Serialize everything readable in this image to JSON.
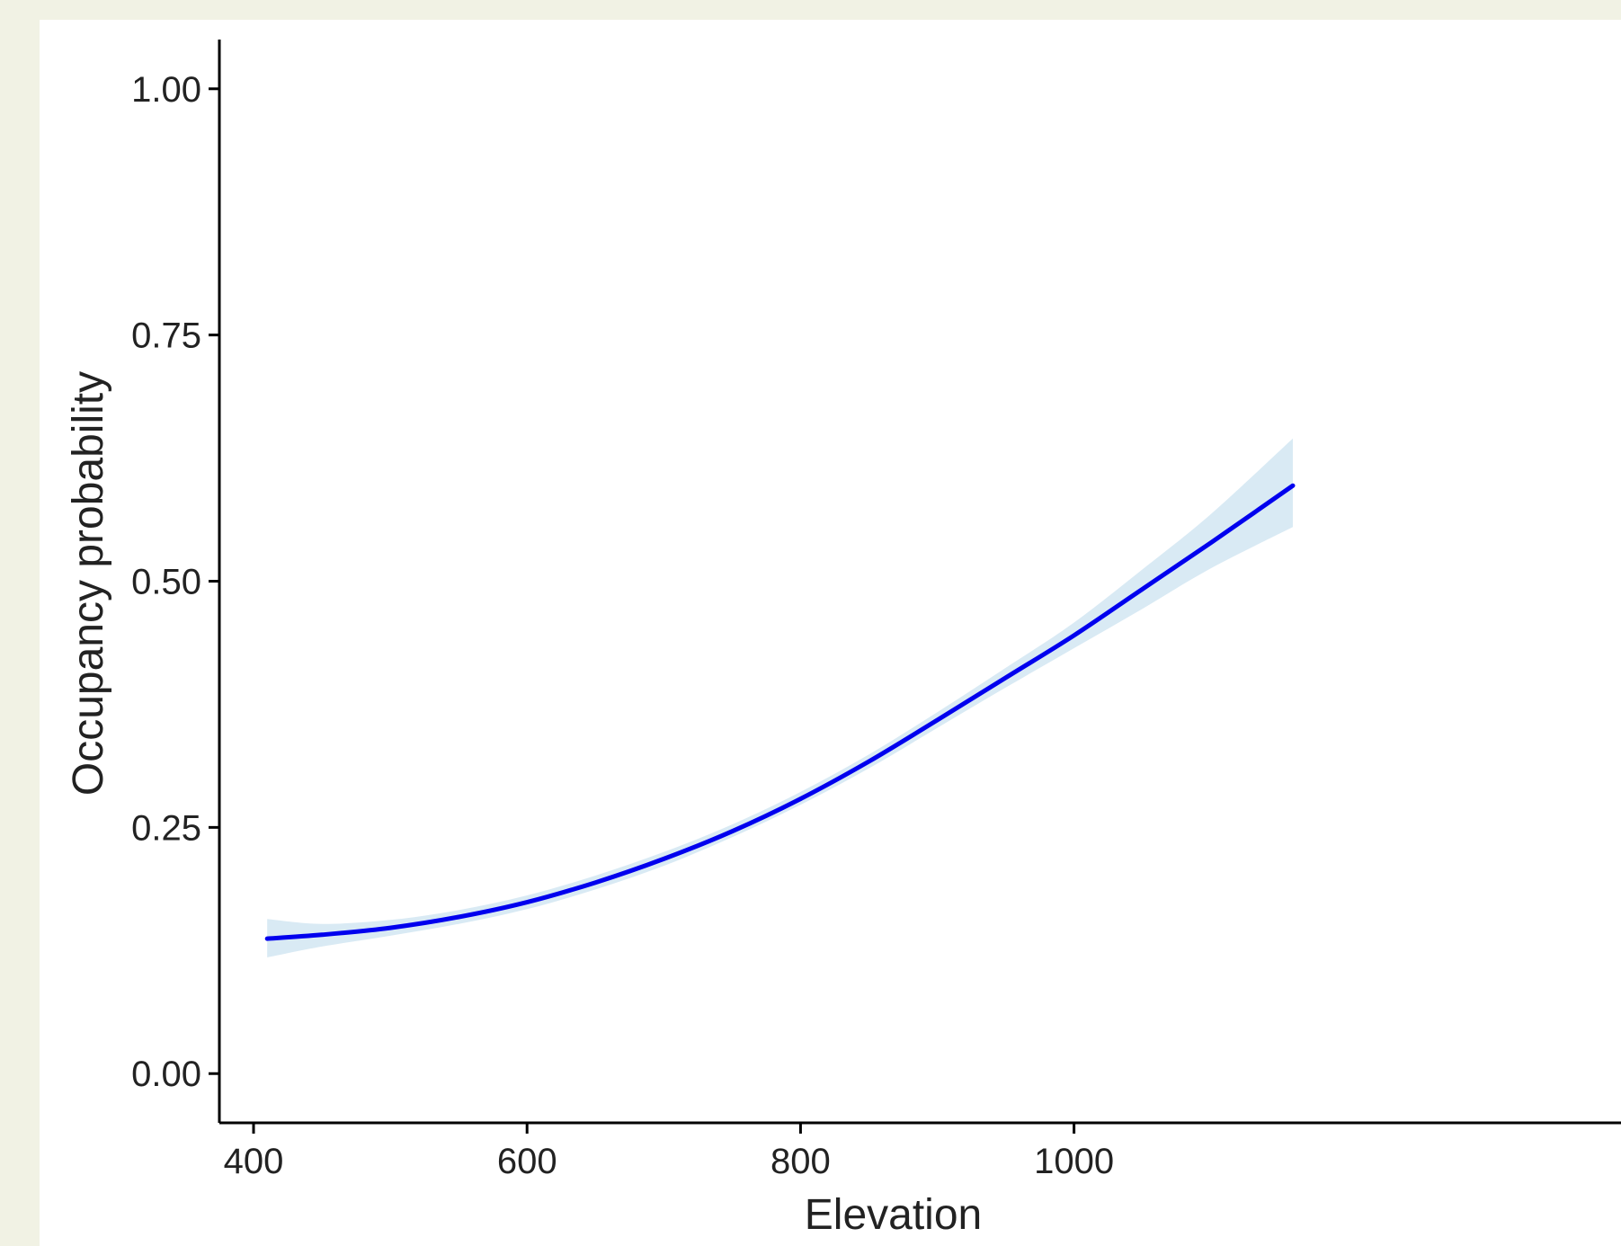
{
  "chart_data": {
    "type": "line",
    "title": "",
    "xlabel": "Elevation",
    "ylabel": "Occupancy probability",
    "xlim": [
      375,
      1400
    ],
    "ylim": [
      -0.05,
      1.05
    ],
    "x_ticks": [
      400,
      600,
      800,
      1000
    ],
    "y_ticks": [
      0.0,
      0.25,
      0.5,
      0.75,
      1.0
    ],
    "y_tick_labels": [
      "0.00",
      "0.25",
      "0.50",
      "0.75",
      "1.00"
    ],
    "grid": false,
    "legend": "none",
    "line_color": "#0000ee",
    "ribbon_color": "#d9eaf4",
    "series": [
      {
        "x": [
          410,
          450,
          500,
          550,
          600,
          650,
          700,
          750,
          800,
          850,
          900,
          950,
          1000,
          1050,
          1100,
          1160
        ],
        "y": [
          0.137,
          0.141,
          0.148,
          0.159,
          0.174,
          0.194,
          0.218,
          0.246,
          0.279,
          0.317,
          0.359,
          0.402,
          0.445,
          0.492,
          0.539,
          0.597
        ],
        "lower": [
          0.118,
          0.129,
          0.14,
          0.152,
          0.167,
          0.187,
          0.211,
          0.24,
          0.273,
          0.31,
          0.351,
          0.392,
          0.432,
          0.472,
          0.513,
          0.555
        ],
        "upper": [
          0.157,
          0.152,
          0.156,
          0.166,
          0.181,
          0.201,
          0.225,
          0.253,
          0.286,
          0.324,
          0.367,
          0.412,
          0.458,
          0.512,
          0.568,
          0.645
        ]
      }
    ]
  }
}
